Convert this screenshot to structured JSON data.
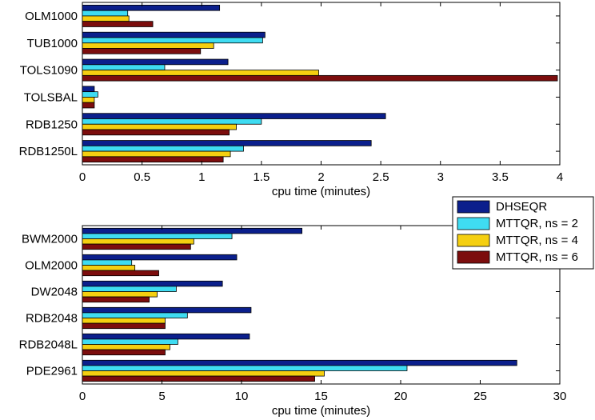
{
  "colors": {
    "DHSEQR": "#0b1f8c",
    "MTTQR, ns = 2": "#3fdcf2",
    "MTTQR, ns = 4": "#f5cf10",
    "MTTQR, ns = 6": "#7c0d0d"
  },
  "legend": {
    "placement": "between panels, right",
    "entries": [
      "DHSEQR",
      "MTTQR, ns = 2",
      "MTTQR, ns = 4",
      "MTTQR, ns = 6"
    ]
  },
  "chart_data": [
    {
      "type": "bar",
      "orientation": "horizontal",
      "categories": [
        "OLM1000",
        "TUB1000",
        "TOLS1090",
        "TOLSBAL",
        "RDB1250",
        "RDB1250L"
      ],
      "series": [
        {
          "name": "DHSEQR",
          "values": [
            1.15,
            1.53,
            1.22,
            0.1,
            2.54,
            2.42
          ]
        },
        {
          "name": "MTTQR, ns = 2",
          "values": [
            0.38,
            1.51,
            0.69,
            0.13,
            1.5,
            1.35
          ]
        },
        {
          "name": "MTTQR, ns = 4",
          "values": [
            0.39,
            1.1,
            1.98,
            0.1,
            1.29,
            1.24
          ]
        },
        {
          "name": "MTTQR, ns = 6",
          "values": [
            0.59,
            0.99,
            3.98,
            0.1,
            1.23,
            1.18
          ]
        }
      ],
      "xlim": [
        0,
        4
      ],
      "xticks": [
        "0",
        "0.5",
        "1",
        "1.5",
        "2",
        "2.5",
        "3",
        "3.5",
        "4"
      ],
      "xlabel": "cpu time (minutes)",
      "grid": false
    },
    {
      "type": "bar",
      "orientation": "horizontal",
      "categories": [
        "BWM2000",
        "OLM2000",
        "DW2048",
        "RDB2048",
        "RDB2048L",
        "PDE2961"
      ],
      "series": [
        {
          "name": "DHSEQR",
          "values": [
            13.8,
            9.7,
            8.8,
            10.6,
            10.5,
            27.3
          ]
        },
        {
          "name": "MTTQR, ns = 2",
          "values": [
            9.4,
            3.1,
            5.9,
            6.6,
            6.0,
            20.4
          ]
        },
        {
          "name": "MTTQR, ns = 4",
          "values": [
            7.0,
            3.3,
            4.7,
            5.2,
            5.5,
            15.2
          ]
        },
        {
          "name": "MTTQR, ns = 6",
          "values": [
            6.8,
            4.8,
            4.2,
            5.2,
            5.2,
            14.6
          ]
        }
      ],
      "xlim": [
        0,
        30
      ],
      "xticks": [
        "0",
        "5",
        "10",
        "15",
        "20",
        "25",
        "30"
      ],
      "xlabel": "cpu time (minutes)",
      "grid": false
    }
  ]
}
